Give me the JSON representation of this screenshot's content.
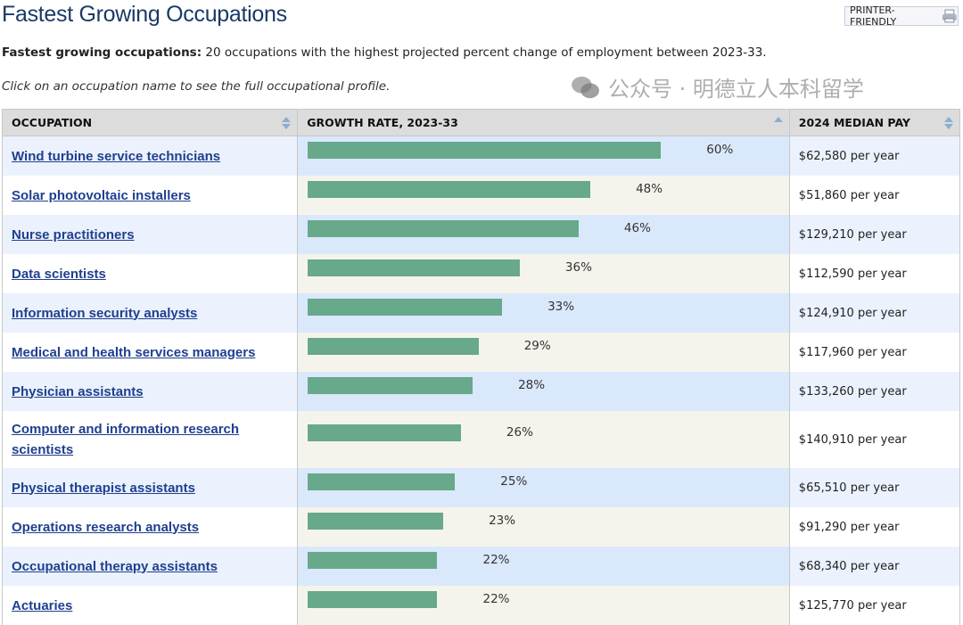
{
  "title": "Fastest Growing Occupations",
  "printer_label": "PRINTER-FRIENDLY",
  "intro_bold": "Fastest growing occupations:",
  "intro_text": " 20 occupations with the highest projected percent change of employment between 2023-33.",
  "hint": "Click on an occupation name to see the full occupational profile.",
  "columns": [
    "OCCUPATION",
    "GROWTH RATE, 2023-33",
    "2024 MEDIAN PAY"
  ],
  "bar_color": "#67a98a",
  "rows": [
    {
      "name": "Wind turbine service technicians",
      "growth": 60,
      "growth_label": "60%",
      "pay": "$62,580 per year"
    },
    {
      "name": "Solar photovoltaic installers",
      "growth": 48,
      "growth_label": "48%",
      "pay": "$51,860 per year"
    },
    {
      "name": "Nurse practitioners",
      "growth": 46,
      "growth_label": "46%",
      "pay": "$129,210 per year"
    },
    {
      "name": "Data scientists",
      "growth": 36,
      "growth_label": "36%",
      "pay": "$112,590 per year"
    },
    {
      "name": "Information security analysts",
      "growth": 33,
      "growth_label": "33%",
      "pay": "$124,910 per year"
    },
    {
      "name": "Medical and health services managers",
      "growth": 29,
      "growth_label": "29%",
      "pay": "$117,960 per year"
    },
    {
      "name": "Physician assistants",
      "growth": 28,
      "growth_label": "28%",
      "pay": "$133,260 per year"
    },
    {
      "name": "Computer and information research scientists",
      "growth": 26,
      "growth_label": "26%",
      "pay": "$140,910 per year"
    },
    {
      "name": "Physical therapist assistants",
      "growth": 25,
      "growth_label": "25%",
      "pay": "$65,510 per year"
    },
    {
      "name": "Operations research analysts",
      "growth": 23,
      "growth_label": "23%",
      "pay": "$91,290 per year"
    },
    {
      "name": "Occupational therapy assistants",
      "growth": 22,
      "growth_label": "22%",
      "pay": "$68,340 per year"
    },
    {
      "name": "Actuaries",
      "growth": 22,
      "growth_label": "22%",
      "pay": "$125,770 per year"
    }
  ],
  "watermark": "公众号 · 明德立人本科留学"
}
